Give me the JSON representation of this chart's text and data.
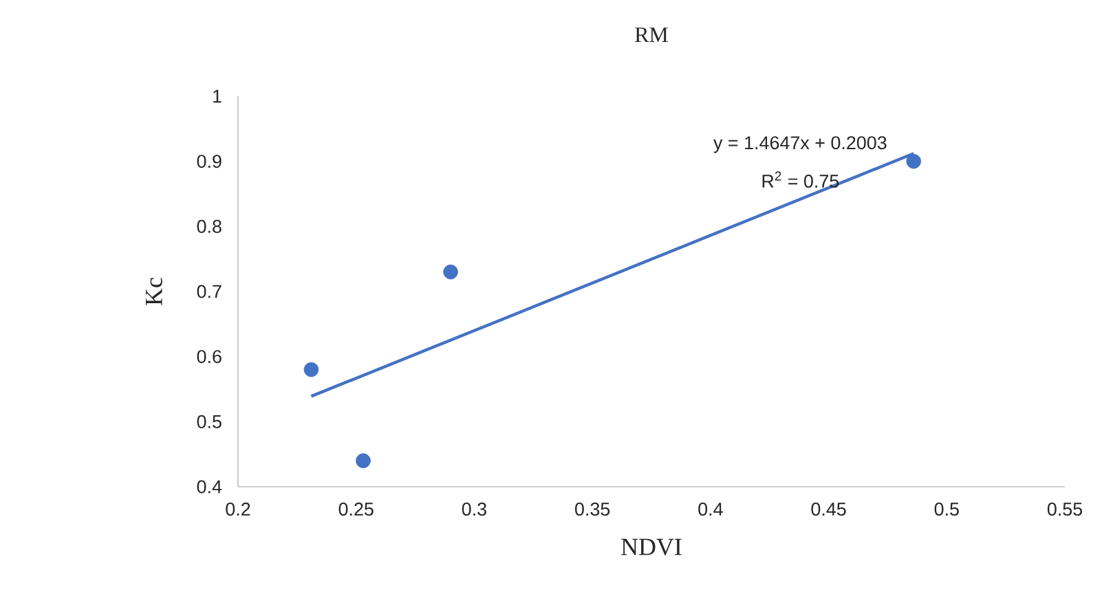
{
  "chart_data": {
    "type": "scatter",
    "title": "RM",
    "xlabel": "NDVI",
    "ylabel": "Kc",
    "series": [
      {
        "color": "#4472c4",
        "x": [
          0.231,
          0.253,
          0.29,
          0.486
        ],
        "values": [
          0.58,
          0.44,
          0.73,
          0.9
        ]
      },
      {
        "type": "line",
        "color": "#4472c4",
        "line_style": "solid",
        "marker": "none",
        "x": [
          0.231,
          0.486
        ],
        "values": [
          0.539,
          0.912
        ]
      }
    ],
    "annotations": [
      "y = 1.4647x + 0.2003",
      "R$^{2}$ = 0.75"
    ],
    "xlim": [
      0.2,
      0.55
    ],
    "xticks": [
      0.2,
      0.25,
      0.3,
      0.35,
      0.4,
      0.45,
      0.5,
      0.55
    ],
    "ylim": [
      0.4,
      1
    ],
    "yticks": [
      0.4,
      0.5,
      0.6,
      0.7,
      0.8,
      0.9,
      1
    ],
    "marker": "circle",
    "grid": false,
    "legend": false
  }
}
